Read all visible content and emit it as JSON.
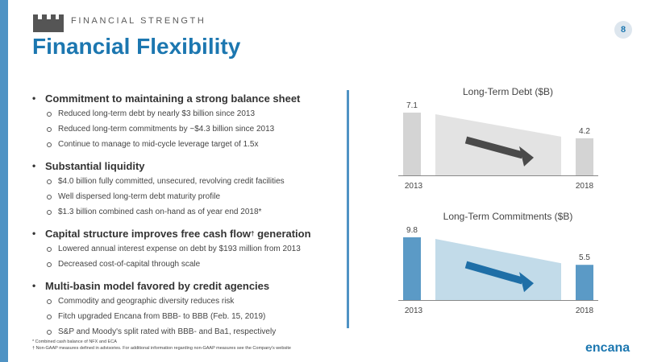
{
  "header": {
    "eyebrow": "FINANCIAL STRENGTH",
    "title": "Financial Flexibility",
    "page_number": "8"
  },
  "bullets": [
    {
      "heading": "Commitment to maintaining a strong balance sheet",
      "items": [
        "Reduced long-term debt by nearly $3 billion since 2013",
        "Reduced long-term commitments by ~$4.3 billion since 2013",
        "Continue to manage to mid-cycle leverage target of 1.5x"
      ]
    },
    {
      "heading": "Substantial liquidity",
      "items": [
        "$4.0 billion fully committed, unsecured, revolving credit facilities",
        "Well dispersed long-term debt maturity profile",
        "$1.3 billion combined cash on-hand as of year end 2018*"
      ]
    },
    {
      "heading": "Capital structure improves free cash flow",
      "heading_sup": "†",
      "heading_tail": " generation",
      "items": [
        "Lowered annual interest expense on debt by $193 million from 2013",
        "Decreased cost-of-capital through scale"
      ]
    },
    {
      "heading": "Multi-basin model favored by credit agencies",
      "items": [
        "Commodity and geographic diversity reduces risk",
        "Fitch upgraded Encana from BBB- to BBB (Feb. 15, 2019)",
        "S&P and Moody's split rated with BBB- and Ba1, respectively"
      ]
    }
  ],
  "footnotes": {
    "line1": "* Combined cash balance of NFX and ECA",
    "line2": "† Non-GAAP measures defined in advisories. For additional information regarding non-GAAP measures see the Company's website"
  },
  "brand": "encana",
  "colors": {
    "accent": "#1c77b0",
    "debt_bar": "#d4d4d4",
    "debt_band": "#e3e3e3",
    "debt_arrow": "#4a4a4a",
    "commit_bar": "#5b9ac6",
    "commit_band": "#c2dbe9",
    "commit_arrow": "#1f6fa7"
  },
  "chart_data": [
    {
      "type": "bar",
      "title": "Long-Term Debt ($B)",
      "categories": [
        "2013",
        "2018"
      ],
      "values": [
        7.1,
        4.2
      ],
      "data_labels": [
        "7.1",
        "4.2"
      ],
      "ylim": [
        0,
        7.1
      ],
      "grid": false,
      "legend": "none"
    },
    {
      "type": "bar",
      "title": "Long-Term Commitments ($B)",
      "categories": [
        "2013",
        "2018"
      ],
      "values": [
        9.8,
        5.5
      ],
      "data_labels": [
        "9.8",
        "5.5"
      ],
      "ylim": [
        0,
        9.8
      ],
      "grid": false,
      "legend": "none"
    }
  ]
}
